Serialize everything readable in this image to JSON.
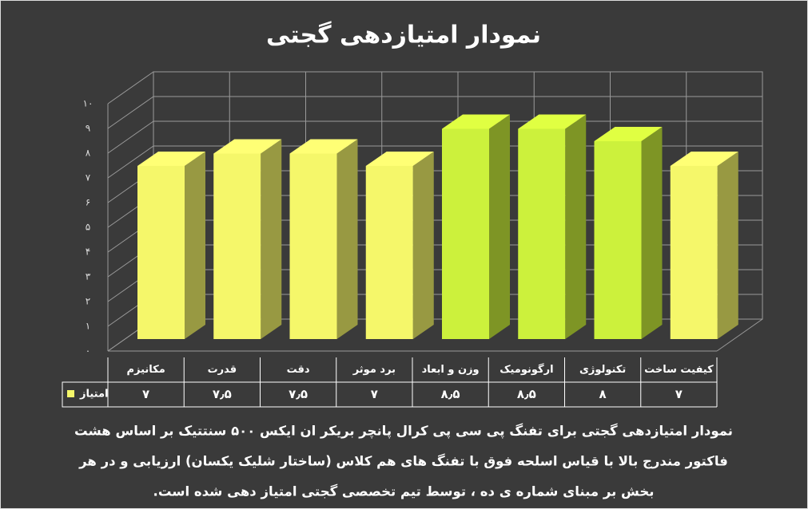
{
  "chart_data": {
    "type": "bar3d",
    "title": "نمودار امتیازدهی گجتی",
    "categories": [
      "مکانیزم",
      "قدرت",
      "دقت",
      "برد موثر",
      "وزن و ابعاد",
      "ارگونومیک",
      "تکنولوژی",
      "کیفیت ساخت"
    ],
    "series": [
      {
        "name": "امتیاز",
        "color": "#f5f76a",
        "colors": [
          "#f5f76a",
          "#f5f76a",
          "#f5f76a",
          "#f5f76a",
          "#ccf13c",
          "#ccf13c",
          "#ccf13c",
          "#f5f76a"
        ],
        "values": [
          7,
          7.5,
          7.5,
          7,
          8.5,
          8.5,
          8,
          7
        ],
        "value_labels": [
          "۷",
          "۷٫۵",
          "۷٫۵",
          "۷",
          "۸٫۵",
          "۸٫۵",
          "۸",
          "۷"
        ]
      }
    ],
    "ylim": [
      0,
      10
    ],
    "yticks": [
      {
        "value": 0,
        "label": "۰"
      },
      {
        "value": 1,
        "label": "۱"
      },
      {
        "value": 2,
        "label": "۲"
      },
      {
        "value": 3,
        "label": "۳"
      },
      {
        "value": 4,
        "label": "۴"
      },
      {
        "value": 5,
        "label": "۵"
      },
      {
        "value": 6,
        "label": "۶"
      },
      {
        "value": 7,
        "label": "۷"
      },
      {
        "value": 8,
        "label": "۸"
      },
      {
        "value": 9,
        "label": "۹"
      },
      {
        "value": 10,
        "label": "۱۰"
      }
    ],
    "grid": true,
    "caption": [
      "نمودار امتیازدهی گجتی برای تفنگ پی سی پی کرال پانچر بریکر ان ایکس ۵۰۰ سنتتیک بر اساس هشت",
      "فاکتور مندرج بالا با قیاس اسلحه فوق با تفنگ های هم کلاس (ساختار شلیک یکسان) ارزیابی و در هر",
      "بخش بر مبنای شماره ی ده ، توسط تیم تخصصی گجتی امتیاز دهی شده است."
    ]
  }
}
